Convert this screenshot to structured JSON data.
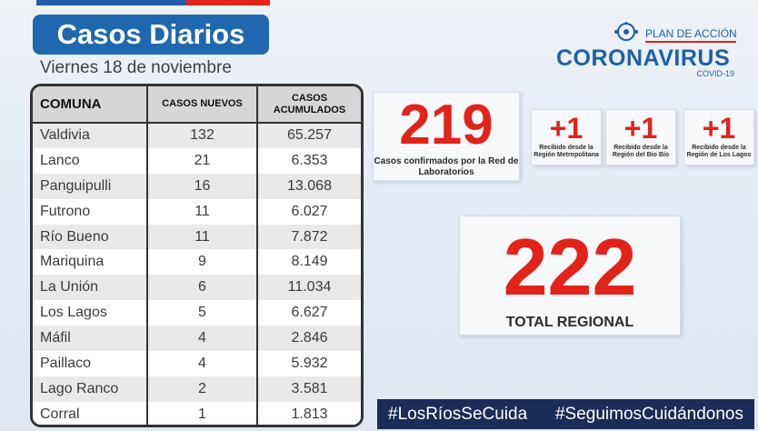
{
  "header": {
    "title": "Casos Diarios",
    "date": "Viernes 18 de noviembre"
  },
  "table": {
    "headers": [
      "COMUNA",
      "CASOS NUEVOS",
      "CASOS ACUMULADOS"
    ],
    "rows": [
      {
        "comuna": "Valdivia",
        "nuevos": "132",
        "acumulados": "65.257"
      },
      {
        "comuna": "Lanco",
        "nuevos": "21",
        "acumulados": "6.353"
      },
      {
        "comuna": "Panguipulli",
        "nuevos": "16",
        "acumulados": "13.068"
      },
      {
        "comuna": "Futrono",
        "nuevos": "11",
        "acumulados": "6.027"
      },
      {
        "comuna": "Río Bueno",
        "nuevos": "11",
        "acumulados": "7.872"
      },
      {
        "comuna": "Mariquina",
        "nuevos": "9",
        "acumulados": "8.149"
      },
      {
        "comuna": "La Unión",
        "nuevos": "6",
        "acumulados": "11.034"
      },
      {
        "comuna": "Los Lagos",
        "nuevos": "5",
        "acumulados": "6.627"
      },
      {
        "comuna": "Máfil",
        "nuevos": "4",
        "acumulados": "2.846"
      },
      {
        "comuna": "Paillaco",
        "nuevos": "4",
        "acumulados": "5.932"
      },
      {
        "comuna": "Lago Ranco",
        "nuevos": "2",
        "acumulados": "3.581"
      },
      {
        "comuna": "Corral",
        "nuevos": "1",
        "acumulados": "1.813"
      }
    ]
  },
  "logo": {
    "subtitle": "PLAN DE ACCIÓN",
    "main": "CORONAVIRUS",
    "covid": "COVID-19"
  },
  "cards": {
    "lab": {
      "value": "219",
      "label": "Casos confirmados por la Red de Laboratorios"
    },
    "extra": [
      {
        "value": "+1",
        "label": "Recibido desde la Región Metropolitana"
      },
      {
        "value": "+1",
        "label": "Recibido desde la Región del Bío Bío"
      },
      {
        "value": "+1",
        "label": "Recibido desde la Región de Los Lagos"
      }
    ],
    "total": {
      "value": "222",
      "label": "TOTAL REGIONAL"
    }
  },
  "hashtags": [
    "#LosRíosSeCuida",
    "#SeguimosCuidándonos"
  ],
  "colors": {
    "brand_blue": "#1f68b0",
    "accent_red": "#e2231a",
    "dark_navy": "#1a2d56"
  }
}
